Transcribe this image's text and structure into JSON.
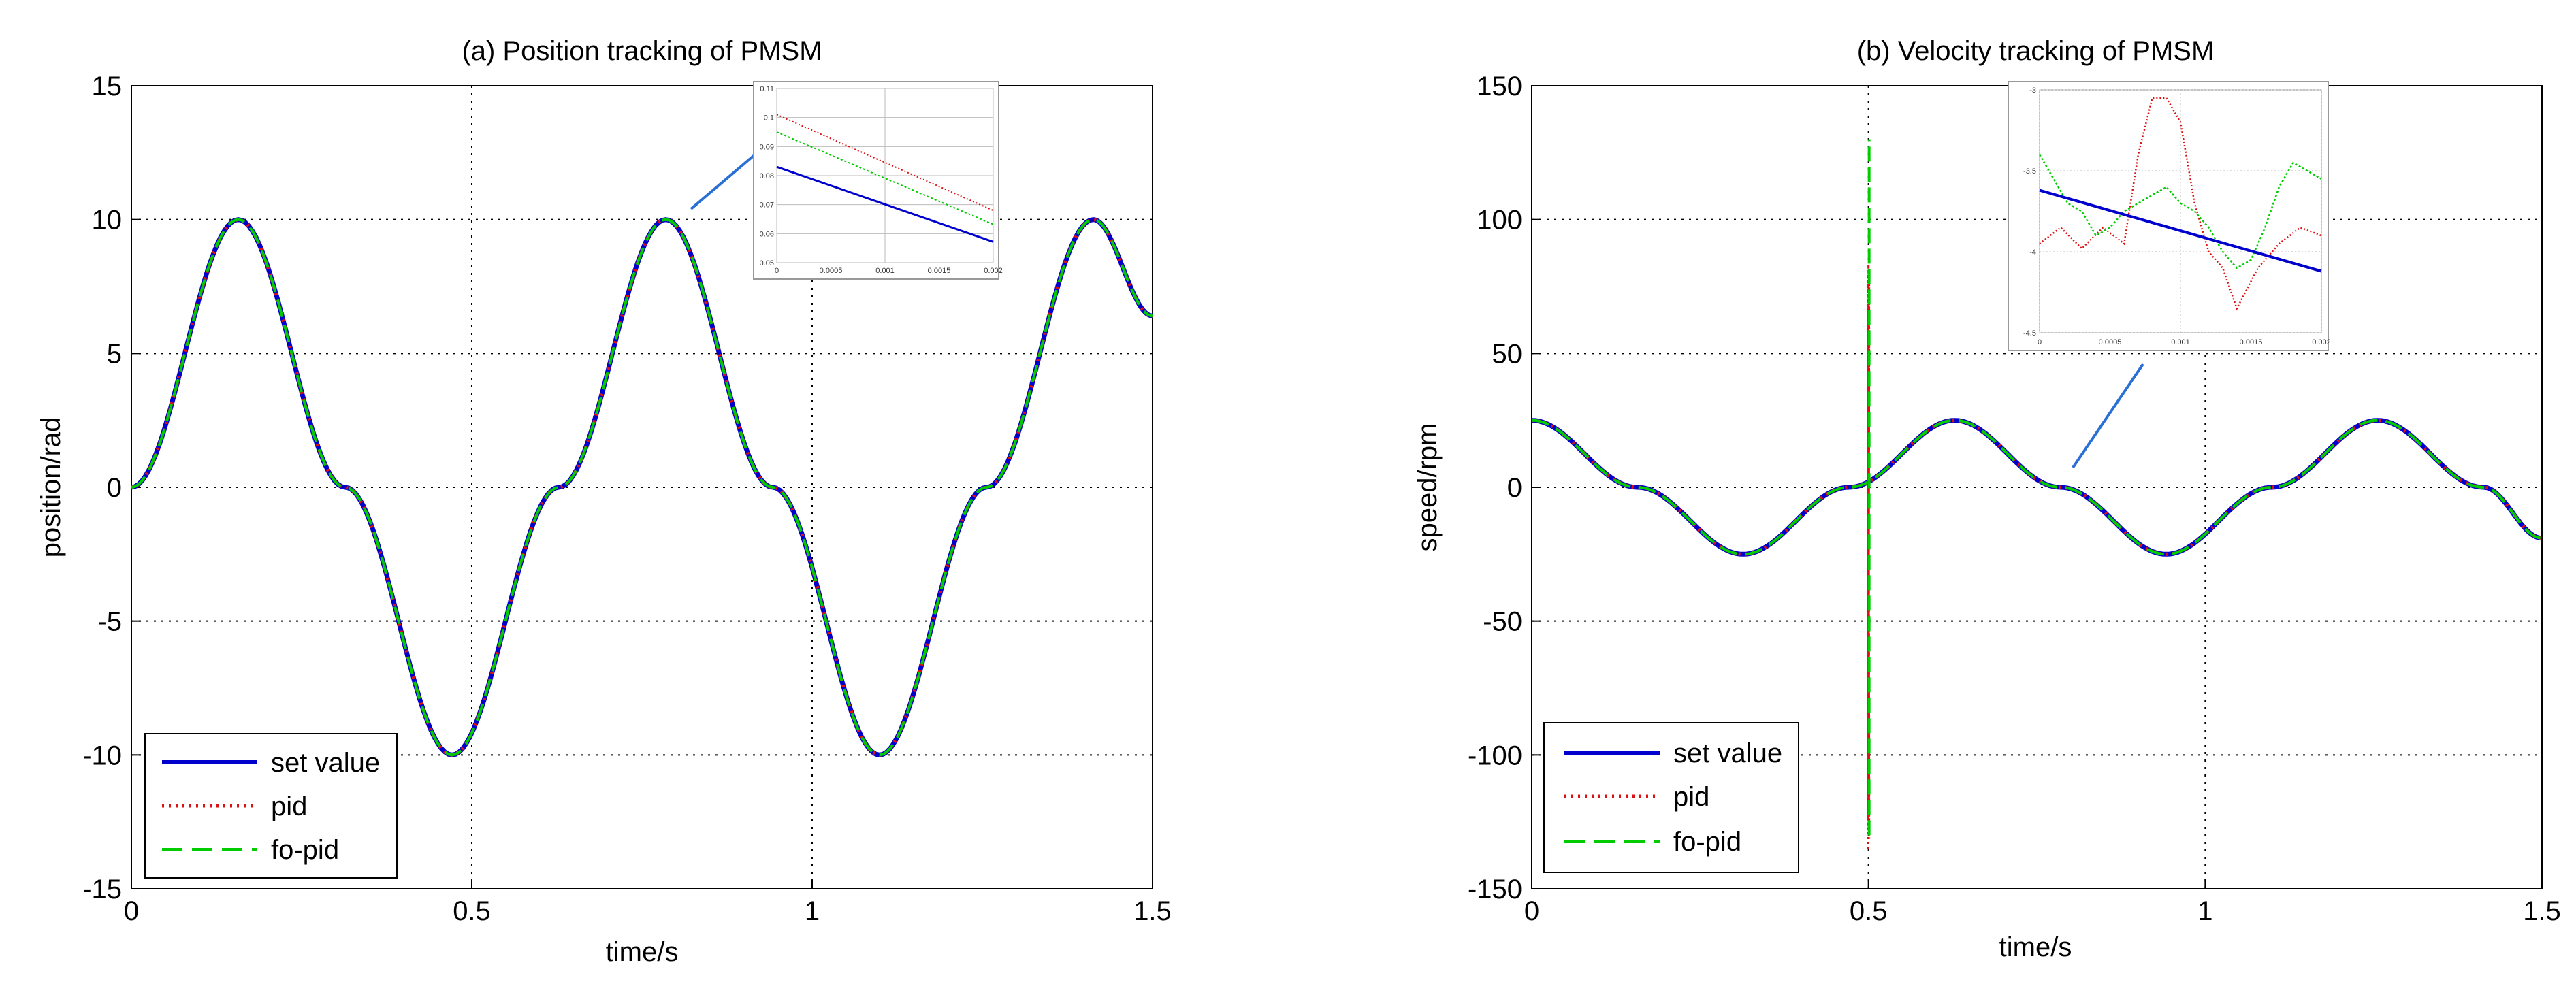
{
  "colors": {
    "set_value": "#0000cc",
    "pid": "#dd1111",
    "fo_pid": "#00cc00",
    "grid": "#000000",
    "callout": "#2a6fd6",
    "inset_grid": "#bbbbbb"
  },
  "chart_data": [
    {
      "type": "line",
      "title": "(a) Position tracking of PMSM",
      "xlabel": "time/s",
      "ylabel": "position/rad",
      "xlim": [
        0,
        1.5
      ],
      "ylim": [
        -15,
        15
      ],
      "xticks": [
        0,
        0.5,
        1,
        1.5
      ],
      "xtick_labels": [
        "0",
        "0.5",
        "1",
        "1.5"
      ],
      "yticks": [
        -15,
        -10,
        -5,
        0,
        5,
        10,
        15
      ],
      "ytick_labels": [
        "-15",
        "-10",
        "-5",
        "0",
        "5",
        "10",
        "15"
      ],
      "grid": true,
      "legend_position": "bottom-left",
      "series": [
        {
          "name": "set value",
          "style": "solid",
          "color": "#0000cc",
          "function": "10*sin(2*pi*t/0.628)",
          "x": [
            0,
            0.157,
            0.314,
            0.471,
            0.628,
            0.785,
            0.942,
            1.099,
            1.256,
            1.413,
            1.5
          ],
          "y": [
            0,
            10,
            0,
            -10,
            0,
            10,
            0,
            -10,
            0,
            10,
            6.4
          ]
        },
        {
          "name": "pid",
          "style": "dotted",
          "color": "#dd1111",
          "x": [
            0,
            0.157,
            0.314,
            0.471,
            0.628,
            0.785,
            0.942,
            1.099,
            1.256,
            1.413,
            1.5
          ],
          "y": [
            0,
            10,
            0,
            -10,
            0,
            10,
            0,
            -10,
            0,
            10,
            6.4
          ]
        },
        {
          "name": "fo-pid",
          "style": "dashed",
          "color": "#00cc00",
          "x": [
            0,
            0.157,
            0.314,
            0.471,
            0.628,
            0.785,
            0.942,
            1.099,
            1.256,
            1.413,
            1.5
          ],
          "y": [
            0,
            10,
            0,
            -10,
            0,
            10,
            0,
            -10,
            0,
            10,
            6.4
          ]
        }
      ],
      "inset": {
        "xlim": [
          0,
          0.002
        ],
        "xticks": [
          0,
          0.0005,
          0.001,
          0.0015,
          0.002
        ],
        "xtick_labels": [
          "0",
          "0.0005",
          "0.001",
          "0.0015",
          "0.002"
        ],
        "ytick_labels": [
          "0.11",
          "0.1",
          "0.09",
          "0.08",
          "0.07",
          "0.06",
          "0.05"
        ],
        "series_levels": {
          "set value": [
            0.55,
            0.12
          ],
          "pid": [
            0.85,
            0.3
          ],
          "fo-pid": [
            0.75,
            0.22
          ]
        }
      }
    },
    {
      "type": "line",
      "title": "(b) Velocity tracking of PMSM",
      "xlabel": "time/s",
      "ylabel": "speed/rpm",
      "xlim": [
        0,
        1.5
      ],
      "ylim": [
        -150,
        150
      ],
      "xticks": [
        0,
        0.5,
        1,
        1.5
      ],
      "xtick_labels": [
        "0",
        "0.5",
        "1",
        "1.5"
      ],
      "yticks": [
        -150,
        -100,
        -50,
        0,
        50,
        100,
        150
      ],
      "ytick_labels": [
        "-150",
        "-100",
        "-50",
        "0",
        "50",
        "100",
        "150"
      ],
      "grid": true,
      "legend_position": "bottom-left",
      "spike": {
        "x": 0.5,
        "pid_range": [
          -135,
          85
        ],
        "fo_pid_range": [
          -130,
          130
        ]
      },
      "series": [
        {
          "name": "set value",
          "style": "solid",
          "color": "#0000cc",
          "function": "25*cos(2*pi*t/0.628)",
          "x": [
            0,
            0.157,
            0.314,
            0.471,
            0.628,
            0.785,
            0.942,
            1.099,
            1.256,
            1.413,
            1.5
          ],
          "y": [
            25,
            0,
            -25,
            0,
            25,
            0,
            -25,
            0,
            25,
            0,
            -19
          ]
        },
        {
          "name": "pid",
          "style": "dotted",
          "color": "#dd1111",
          "x": [
            0,
            0.157,
            0.314,
            0.471,
            0.628,
            0.785,
            0.942,
            1.099,
            1.256,
            1.413,
            1.5
          ],
          "y": [
            25,
            0,
            -25,
            0,
            25,
            0,
            -25,
            0,
            25,
            0,
            -19
          ]
        },
        {
          "name": "fo-pid",
          "style": "dashed",
          "color": "#00cc00",
          "x": [
            0,
            0.157,
            0.314,
            0.471,
            0.628,
            0.785,
            0.942,
            1.099,
            1.256,
            1.413,
            1.5
          ],
          "y": [
            25,
            0,
            -25,
            0,
            25,
            0,
            -25,
            0,
            25,
            0,
            -19
          ]
        }
      ],
      "inset": {
        "xlim": [
          0,
          0.002
        ],
        "ylim": [
          -4.5,
          -3
        ],
        "xticks": [
          0,
          0.0005,
          0.001,
          0.0015,
          0.002
        ],
        "xtick_labels": [
          "0",
          "0.0005",
          "0.001",
          "0.0015",
          "0.002"
        ],
        "yticks": [
          -3,
          -3.5,
          -4,
          -4.5
        ],
        "ytick_labels": [
          "-3",
          "-3.5",
          "-4",
          "-4.5"
        ],
        "set_value_line": {
          "x": [
            0,
            0.002
          ],
          "y": [
            -3.62,
            -4.12
          ]
        },
        "pid_points": {
          "x": [
            0,
            0.00015,
            0.0003,
            0.00045,
            0.0006,
            0.0007,
            0.0008,
            0.0009,
            0.001,
            0.0011,
            0.0012,
            0.0013,
            0.0014,
            0.00155,
            0.0017,
            0.00185,
            0.002
          ],
          "y": [
            -3.95,
            -3.85,
            -3.98,
            -3.85,
            -3.95,
            -3.4,
            -3.05,
            -3.05,
            -3.2,
            -3.7,
            -4.0,
            -4.1,
            -4.35,
            -4.1,
            -3.95,
            -3.85,
            -3.9
          ]
        },
        "fo_pid_points": {
          "x": [
            0,
            0.0001,
            0.0002,
            0.0003,
            0.0004,
            0.0005,
            0.0006,
            0.0007,
            0.0008,
            0.0009,
            0.001,
            0.0011,
            0.0012,
            0.0013,
            0.0014,
            0.0015,
            0.0016,
            0.0017,
            0.0018,
            0.0019,
            0.002
          ],
          "y": [
            -3.4,
            -3.55,
            -3.7,
            -3.75,
            -3.9,
            -3.85,
            -3.75,
            -3.7,
            -3.65,
            -3.6,
            -3.7,
            -3.75,
            -3.85,
            -4.0,
            -4.1,
            -4.05,
            -3.85,
            -3.6,
            -3.45,
            -3.5,
            -3.55
          ]
        }
      }
    }
  ]
}
